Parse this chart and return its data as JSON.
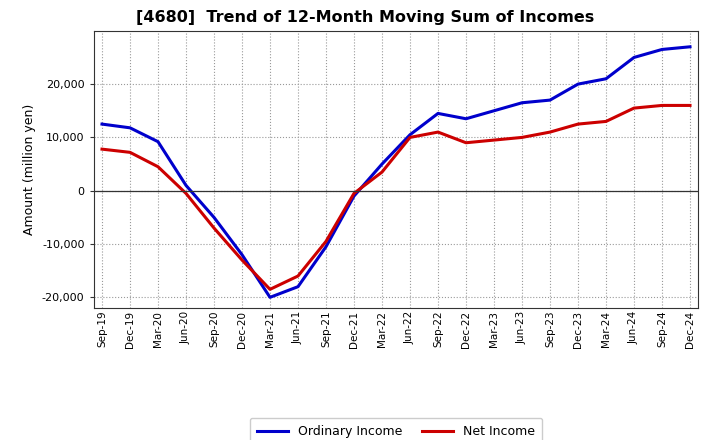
{
  "title": "[4680]  Trend of 12-Month Moving Sum of Incomes",
  "ylabel": "Amount (million yen)",
  "x_labels": [
    "Sep-19",
    "Dec-19",
    "Mar-20",
    "Jun-20",
    "Sep-20",
    "Dec-20",
    "Mar-21",
    "Jun-21",
    "Sep-21",
    "Dec-21",
    "Mar-22",
    "Jun-22",
    "Sep-22",
    "Dec-22",
    "Mar-23",
    "Jun-23",
    "Sep-23",
    "Dec-23",
    "Mar-24",
    "Jun-24",
    "Sep-24",
    "Dec-24"
  ],
  "ordinary_income": [
    12500,
    11800,
    9200,
    1000,
    -5000,
    -12000,
    -20000,
    -18000,
    -10500,
    -1000,
    5000,
    10500,
    14500,
    13500,
    15000,
    16500,
    17000,
    20000,
    21000,
    25000,
    26500,
    27000
  ],
  "net_income": [
    7800,
    7200,
    4500,
    -500,
    -7000,
    -13000,
    -18500,
    -16000,
    -9500,
    -500,
    3500,
    10000,
    11000,
    9000,
    9500,
    10000,
    11000,
    12500,
    13000,
    15500,
    16000,
    16000
  ],
  "ordinary_color": "#0000cc",
  "net_color": "#cc0000",
  "background_color": "#ffffff",
  "grid_color": "#999999",
  "ylim": [
    -22000,
    30000
  ],
  "yticks": [
    -20000,
    -10000,
    0,
    10000,
    20000
  ],
  "legend_labels": [
    "Ordinary Income",
    "Net Income"
  ]
}
